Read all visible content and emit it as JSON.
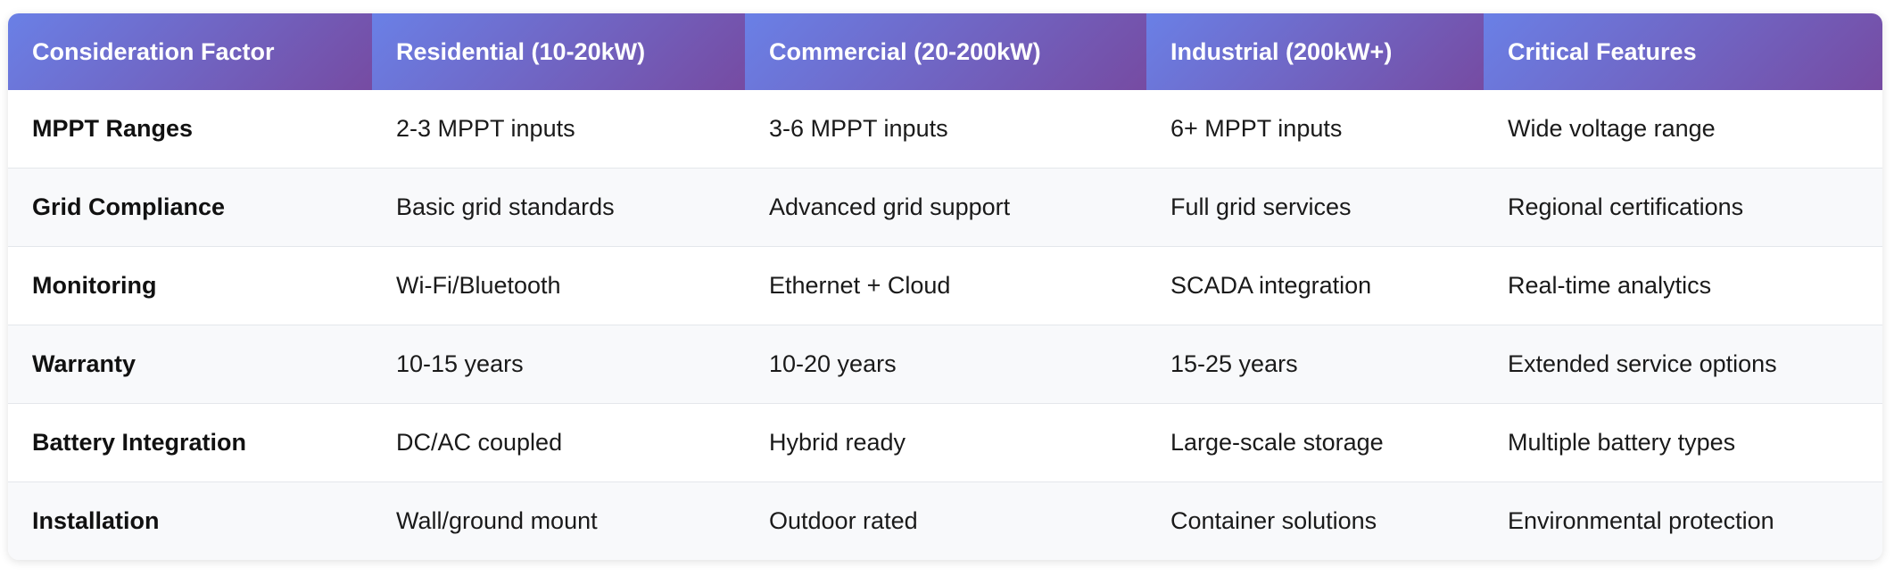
{
  "table": {
    "headers": [
      "Consideration Factor",
      "Residential (10-20kW)",
      "Commercial (20-200kW)",
      "Industrial (200kW+)",
      "Critical Features"
    ],
    "rows": [
      [
        "MPPT Ranges",
        "2-3 MPPT inputs",
        "3-6 MPPT inputs",
        "6+ MPPT inputs",
        "Wide voltage range"
      ],
      [
        "Grid Compliance",
        "Basic grid standards",
        "Advanced grid support",
        "Full grid services",
        "Regional certifications"
      ],
      [
        "Monitoring",
        "Wi-Fi/Bluetooth",
        "Ethernet + Cloud",
        "SCADA integration",
        "Real-time analytics"
      ],
      [
        "Warranty",
        "10-15 years",
        "10-20 years",
        "15-25 years",
        "Extended service options"
      ],
      [
        "Battery Integration",
        "DC/AC coupled",
        "Hybrid ready",
        "Large-scale storage",
        "Multiple battery types"
      ],
      [
        "Installation",
        "Wall/ground mount",
        "Outdoor rated",
        "Container solutions",
        "Environmental protection"
      ]
    ]
  },
  "colors": {
    "header_gradient_start": "#6a80e6",
    "header_gradient_end": "#764ba2",
    "header_text": "#ffffff",
    "row_alt_background": "#f8f9fb",
    "row_border": "#e4e7eb"
  }
}
